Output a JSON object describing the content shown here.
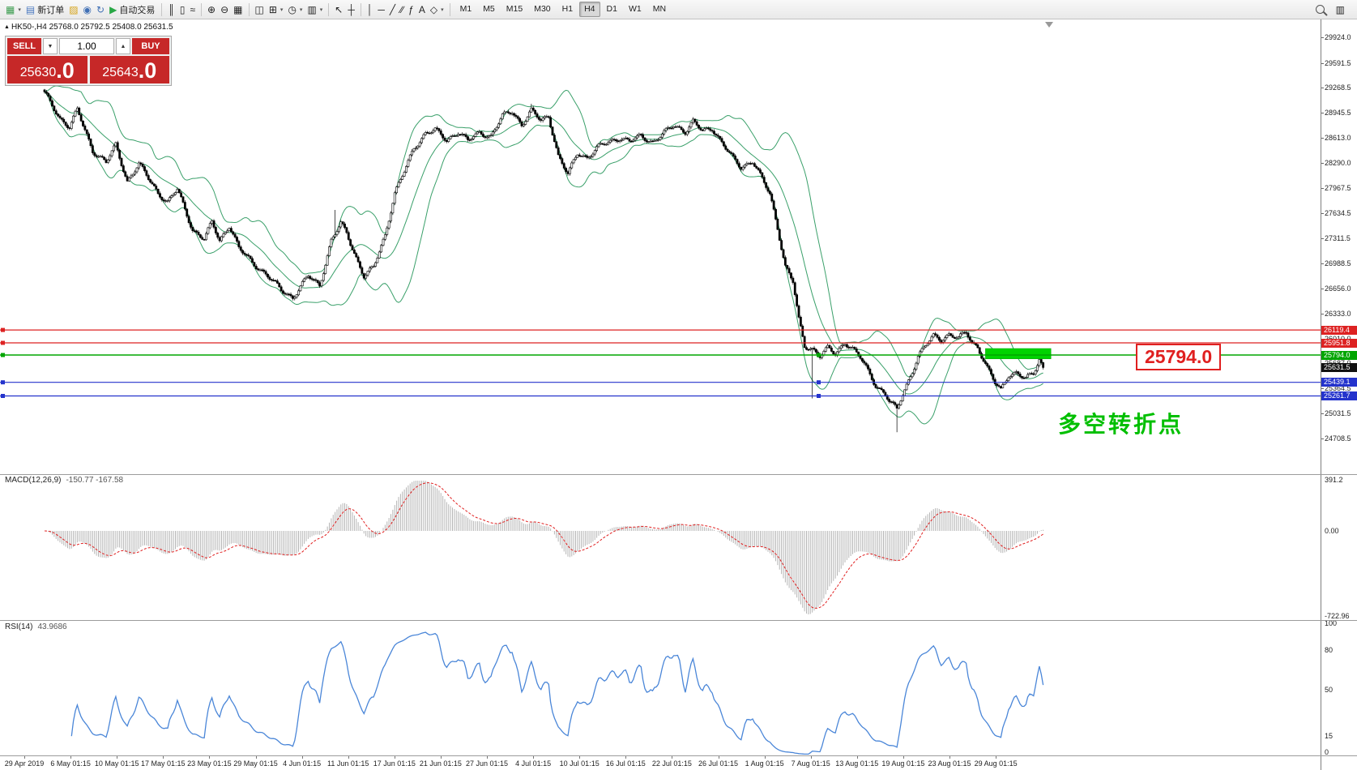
{
  "toolbar": {
    "left_items": [
      {
        "name": "new-chart-icon",
        "glyph": "▦",
        "color": "#3f9e52",
        "caret": true
      },
      {
        "name": "new-order-button",
        "icon": "new-order-icon",
        "glyph": "▤",
        "color": "#4a78c0",
        "label": "新订单"
      },
      {
        "name": "metaeditor-icon",
        "glyph": "▨",
        "color": "#d6a318"
      },
      {
        "name": "profile-icon",
        "glyph": "◉",
        "color": "#3f6fb5"
      },
      {
        "name": "refresh-icon",
        "glyph": "↻",
        "color": "#3f6fb5"
      },
      {
        "name": "autotrade-button",
        "icon": "autotrade-icon",
        "glyph": "▶",
        "color": "#28a745",
        "label": "自动交易"
      }
    ],
    "tool_items": [
      {
        "sep": true
      },
      {
        "name": "bar-chart-icon",
        "glyph": "║"
      },
      {
        "name": "candle-chart-icon",
        "glyph": "▯"
      },
      {
        "name": "line-chart-icon",
        "glyph": "≈"
      },
      {
        "sep": true
      },
      {
        "name": "zoom-in-icon",
        "glyph": "⊕"
      },
      {
        "name": "zoom-out-icon",
        "glyph": "⊖"
      },
      {
        "name": "tile-windows-icon",
        "glyph": "▦"
      },
      {
        "sep": true
      },
      {
        "name": "arrange-charts-icon",
        "glyph": "◫"
      },
      {
        "name": "indicators-icon",
        "glyph": "⊞",
        "caret": true
      },
      {
        "name": "periods-icon",
        "glyph": "◷",
        "caret": true
      },
      {
        "name": "templates-icon",
        "glyph": "▥",
        "caret": true
      },
      {
        "sep": true
      },
      {
        "name": "cursor-icon",
        "glyph": "↖"
      },
      {
        "name": "crosshair-icon",
        "glyph": "┼"
      },
      {
        "sep": true
      },
      {
        "name": "vertical-line-icon",
        "glyph": "│"
      },
      {
        "name": "horizontal-line-icon",
        "glyph": "─"
      },
      {
        "name": "trendline-icon",
        "glyph": "╱"
      },
      {
        "name": "channel-icon",
        "glyph": "∕∕"
      },
      {
        "name": "fibonacci-icon",
        "glyph": "ƒ"
      },
      {
        "name": "text-icon",
        "glyph": "A"
      },
      {
        "name": "arrows-icon",
        "glyph": "◇",
        "caret": true
      },
      {
        "sep": true
      }
    ],
    "timeframes": [
      {
        "label": "M1"
      },
      {
        "label": "M5"
      },
      {
        "label": "M15"
      },
      {
        "label": "M30"
      },
      {
        "label": "H1"
      },
      {
        "label": "H4",
        "active": true
      },
      {
        "label": "D1"
      },
      {
        "label": "W1"
      },
      {
        "label": "MN"
      }
    ],
    "right_items": [
      {
        "name": "search-button",
        "special": "mag"
      },
      {
        "name": "data-window-icon",
        "glyph": "▥"
      }
    ]
  },
  "chart_info": {
    "symbol": "HK50-,H4",
    "ohlc": "25768.0 25792.5 25408.0 25631.5"
  },
  "order_panel": {
    "sell_label": "SELL",
    "buy_label": "BUY",
    "volume": "1.00",
    "sell_price_main": "25630",
    "sell_price_frac": ".0",
    "buy_price_main": "25643",
    "buy_price_frac": ".0"
  },
  "overlays": {
    "callout_text": "25794.0",
    "annotation_text": "多空转折点"
  },
  "chart_data": {
    "type": "candlestick",
    "symbol": "HK50-",
    "timeframe": "H4",
    "ohlc_display": {
      "open": "25768.0",
      "high": "25792.5",
      "low": "25408.0",
      "close": "25631.5"
    },
    "current_price": 25631.5,
    "bars_total": 520,
    "candle_colors": {
      "up": "#ffffff",
      "down": "#000000",
      "outline": "#000000"
    },
    "close_waypoints": [
      [
        0,
        29200
      ],
      [
        8,
        28870
      ],
      [
        13,
        28760
      ],
      [
        17,
        28980
      ],
      [
        25,
        28450
      ],
      [
        32,
        28300
      ],
      [
        37,
        28520
      ],
      [
        43,
        28050
      ],
      [
        49,
        28280
      ],
      [
        59,
        27900
      ],
      [
        64,
        27780
      ],
      [
        69,
        27950
      ],
      [
        77,
        27420
      ],
      [
        83,
        27300
      ],
      [
        87,
        27520
      ],
      [
        91,
        27280
      ],
      [
        96,
        27480
      ],
      [
        101,
        27180
      ],
      [
        108,
        27000
      ],
      [
        116,
        26820
      ],
      [
        123,
        26640
      ],
      [
        129,
        26540
      ],
      [
        137,
        26820
      ],
      [
        143,
        26700
      ],
      [
        149,
        27280
      ],
      [
        154,
        27500
      ],
      [
        157,
        27380
      ],
      [
        161,
        27120
      ],
      [
        166,
        26820
      ],
      [
        171,
        26930
      ],
      [
        177,
        27350
      ],
      [
        182,
        27900
      ],
      [
        187,
        28180
      ],
      [
        192,
        28480
      ],
      [
        198,
        28680
      ],
      [
        203,
        28720
      ],
      [
        209,
        28580
      ],
      [
        215,
        28700
      ],
      [
        220,
        28580
      ],
      [
        226,
        28680
      ],
      [
        232,
        28640
      ],
      [
        238,
        28900
      ],
      [
        243,
        28960
      ],
      [
        248,
        28790
      ],
      [
        253,
        28970
      ],
      [
        258,
        28840
      ],
      [
        262,
        28900
      ],
      [
        267,
        28380
      ],
      [
        272,
        28140
      ],
      [
        277,
        28420
      ],
      [
        282,
        28360
      ],
      [
        288,
        28500
      ],
      [
        293,
        28560
      ],
      [
        299,
        28620
      ],
      [
        304,
        28570
      ],
      [
        310,
        28640
      ],
      [
        316,
        28560
      ],
      [
        321,
        28660
      ],
      [
        327,
        28780
      ],
      [
        333,
        28700
      ],
      [
        337,
        28830
      ],
      [
        342,
        28700
      ],
      [
        347,
        28740
      ],
      [
        352,
        28560
      ],
      [
        358,
        28340
      ],
      [
        362,
        28230
      ],
      [
        368,
        28320
      ],
      [
        373,
        28080
      ],
      [
        377,
        27880
      ],
      [
        381,
        27450
      ],
      [
        385,
        26950
      ],
      [
        389,
        26750
      ],
      [
        392,
        26250
      ],
      [
        395,
        25900
      ],
      [
        399,
        25880
      ],
      [
        403,
        25790
      ],
      [
        407,
        25880
      ],
      [
        411,
        25800
      ],
      [
        416,
        25960
      ],
      [
        420,
        25880
      ],
      [
        424,
        25760
      ],
      [
        428,
        25580
      ],
      [
        432,
        25400
      ],
      [
        437,
        25290
      ],
      [
        439,
        25200
      ],
      [
        443,
        25080
      ],
      [
        446,
        25280
      ],
      [
        450,
        25520
      ],
      [
        454,
        25780
      ],
      [
        459,
        25950
      ],
      [
        462,
        26040
      ],
      [
        466,
        26000
      ],
      [
        470,
        26060
      ],
      [
        475,
        26010
      ],
      [
        479,
        26090
      ],
      [
        482,
        25960
      ],
      [
        485,
        25900
      ],
      [
        490,
        25620
      ],
      [
        494,
        25430
      ],
      [
        497,
        25340
      ],
      [
        501,
        25540
      ],
      [
        505,
        25560
      ],
      [
        510,
        25480
      ],
      [
        514,
        25560
      ],
      [
        517,
        25740
      ],
      [
        519,
        25631.5
      ]
    ],
    "spikes": [
      {
        "bar": 151,
        "high": 27680
      },
      {
        "bar": 253,
        "high": 29060
      },
      {
        "bar": 399,
        "low": 25230
      },
      {
        "bar": 443,
        "low": 24790
      }
    ],
    "price_ticks": [
      "29924.0",
      "29591.5",
      "29268.5",
      "28945.5",
      "28613.0",
      "28290.0",
      "27967.5",
      "27634.5",
      "27311.5",
      "26988.5",
      "26656.0",
      "26333.0",
      "26010.0",
      "25687.0",
      "25364.5",
      "25031.5",
      "24708.5"
    ],
    "hlines": [
      {
        "price": 26119.4,
        "label": "26119.4",
        "color": "#dd2222",
        "w": 1.2,
        "mid_handle": false
      },
      {
        "price": 25951.8,
        "label": "25951.8",
        "color": "#dd2222",
        "w": 1.2,
        "mid_handle": false
      },
      {
        "price": 25794.0,
        "label": "25794.0",
        "color": "#00a500",
        "w": 1.6,
        "mid_handle": true
      },
      {
        "price": 25439.1,
        "label": "25439.1",
        "color": "#2433cc",
        "w": 1.2,
        "mid_handle": true
      },
      {
        "price": 25261.7,
        "label": "25261.7",
        "color": "#2433cc",
        "w": 1.2,
        "mid_handle": true
      }
    ],
    "highlight_rect": {
      "from_bar": 489,
      "to_bar": 523,
      "price_top": 25878,
      "price_bottom": 25744,
      "color": "#00d300"
    },
    "bollinger": {
      "period": 20,
      "deviation": 2,
      "color": "#3aa06a"
    },
    "macd": {
      "label": "MACD(12,26,9)",
      "values_text": "-150.77 -167.58",
      "fast": 12,
      "slow": 26,
      "signal": 9,
      "scale_top": "391.2",
      "scale_zero": "0.00",
      "scale_bottom": "-722.96",
      "histogram_color": "#b5b5b5",
      "signal_color": "#e02020"
    },
    "rsi": {
      "label": "RSI(14)",
      "value_text": "43.9686",
      "period": 14,
      "scale": [
        100,
        80,
        50,
        15,
        0
      ],
      "color": "#4a86d8"
    },
    "x_labels": [
      "29 Apr 2019",
      "6 May 01:15",
      "10 May 01:15",
      "17 May 01:15",
      "23 May 01:15",
      "29 May 01:15",
      "4 Jun 01:15",
      "11 Jun 01:15",
      "17 Jun 01:15",
      "21 Jun 01:15",
      "27 Jun 01:15",
      "4 Jul 01:15",
      "10 Jul 01:15",
      "16 Jul 01:15",
      "22 Jul 01:15",
      "26 Jul 01:15",
      "1 Aug 01:15",
      "7 Aug 01:15",
      "13 Aug 01:15",
      "19 Aug 01:15",
      "23 Aug 01:15",
      "29 Aug 01:15"
    ]
  }
}
